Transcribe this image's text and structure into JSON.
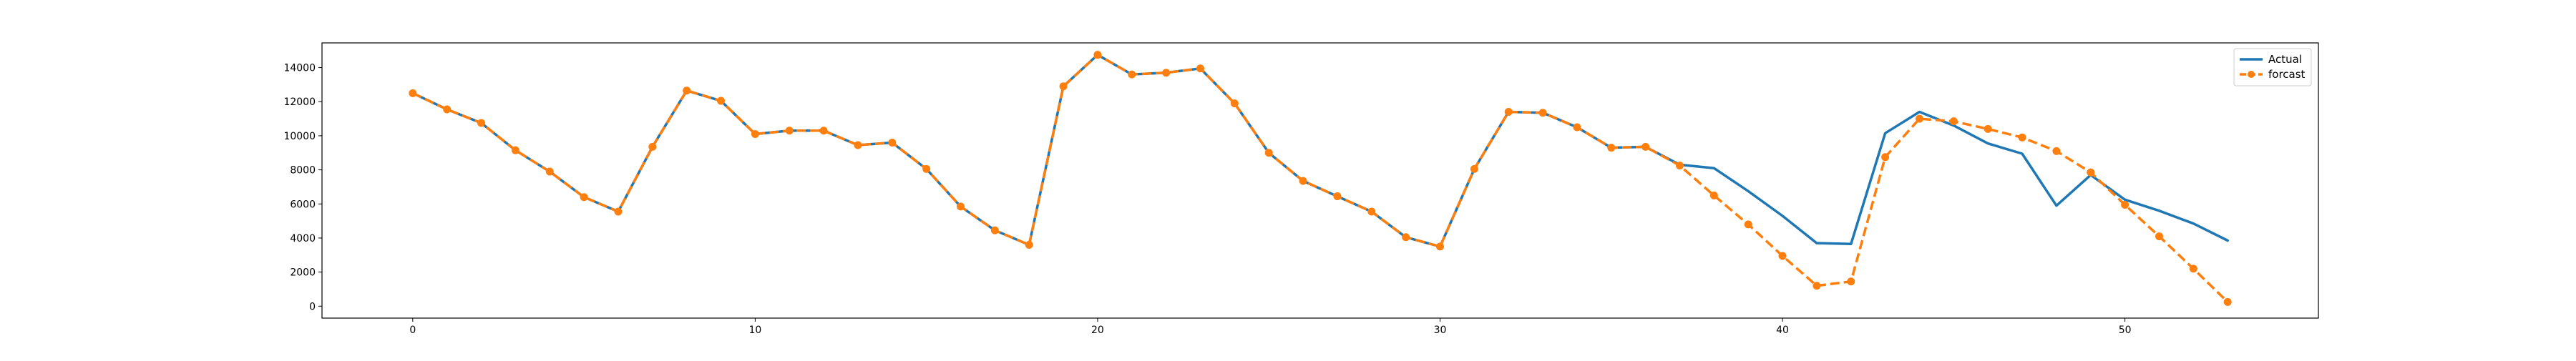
{
  "chart_data": {
    "type": "line",
    "title": "",
    "xlabel": "",
    "ylabel": "",
    "xlim": [
      -2.65,
      55.65
    ],
    "ylim": [
      -700,
      15450
    ],
    "x_ticks": [
      0,
      10,
      20,
      30,
      40,
      50
    ],
    "y_ticks": [
      0,
      2000,
      4000,
      6000,
      8000,
      10000,
      12000,
      14000
    ],
    "grid": false,
    "legend": "top-right",
    "series": [
      {
        "name": "Actual",
        "color": "#1f77b4",
        "style": "solid",
        "markers": false,
        "x": [
          0,
          1,
          2,
          3,
          4,
          5,
          6,
          7,
          8,
          9,
          10,
          11,
          12,
          13,
          14,
          15,
          16,
          17,
          18,
          19,
          20,
          21,
          22,
          23,
          24,
          25,
          26,
          27,
          28,
          29,
          30,
          31,
          32,
          33,
          34,
          35,
          36,
          37,
          38,
          39,
          40,
          41,
          42,
          43,
          44,
          45,
          46,
          47,
          48,
          49,
          50,
          51,
          52,
          53
        ],
        "values": [
          12500,
          11550,
          10750,
          9150,
          7900,
          6400,
          5550,
          9350,
          12650,
          12050,
          10100,
          10300,
          10300,
          9450,
          9600,
          8050,
          5850,
          4450,
          3600,
          12900,
          14750,
          13600,
          13700,
          13950,
          11900,
          9000,
          7350,
          6450,
          5550,
          4050,
          3500,
          8050,
          11400,
          11350,
          10500,
          9300,
          9350,
          8300,
          8100,
          6750,
          5300,
          3700,
          3650,
          10150,
          11400,
          10600,
          9550,
          8950,
          5900,
          7700,
          6250,
          5600,
          4850,
          3850
        ]
      },
      {
        "name": "forcast",
        "color": "#ff7f0e",
        "style": "dashed",
        "markers": true,
        "x": [
          0,
          1,
          2,
          3,
          4,
          5,
          6,
          7,
          8,
          9,
          10,
          11,
          12,
          13,
          14,
          15,
          16,
          17,
          18,
          19,
          20,
          21,
          22,
          23,
          24,
          25,
          26,
          27,
          28,
          29,
          30,
          31,
          32,
          33,
          34,
          35,
          36,
          37,
          38,
          39,
          40,
          41,
          42,
          43,
          44,
          45,
          46,
          47,
          48,
          49,
          50,
          51,
          52,
          53
        ],
        "values": [
          12500,
          11550,
          10750,
          9150,
          7900,
          6400,
          5550,
          9350,
          12650,
          12050,
          10100,
          10300,
          10300,
          9450,
          9600,
          8050,
          5850,
          4450,
          3600,
          12900,
          14750,
          13600,
          13700,
          13950,
          11900,
          9000,
          7350,
          6450,
          5550,
          4050,
          3500,
          8050,
          11400,
          11350,
          10500,
          9300,
          9350,
          8250,
          6500,
          4800,
          2950,
          1200,
          1450,
          8750,
          11000,
          10850,
          10400,
          9900,
          9100,
          7850,
          5950,
          4100,
          2200,
          250
        ]
      }
    ]
  }
}
